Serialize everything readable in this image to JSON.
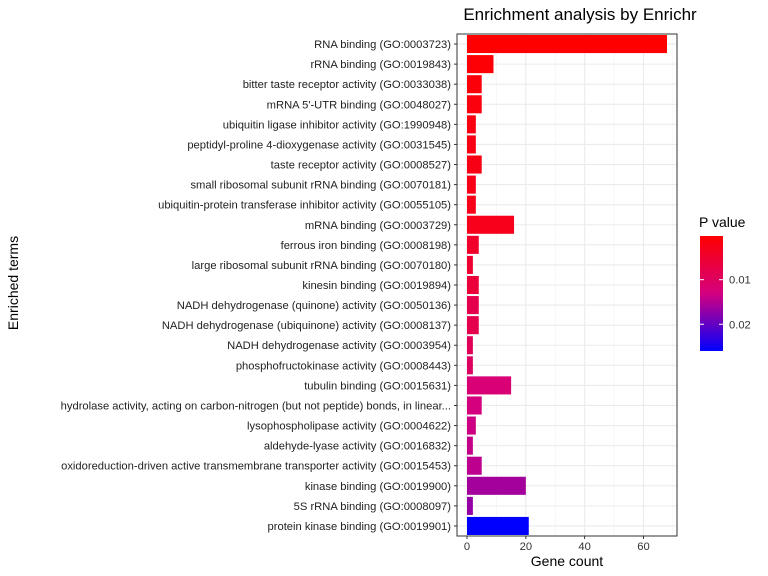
{
  "chart_data": {
    "type": "bar",
    "orientation": "horizontal",
    "title": "Enrichment analysis by Enrichr",
    "xlabel": "Gene count",
    "ylabel": "Enriched terms",
    "xlim": [
      0,
      70
    ],
    "xticks": [
      0,
      20,
      40,
      60
    ],
    "grid": true,
    "legend": {
      "title": "P value",
      "position": "right",
      "type": "colorbar",
      "range": [
        0.0002,
        0.026
      ],
      "ticks": [
        0.01,
        0.02
      ],
      "tick_labels": [
        "0.01",
        "0.02"
      ],
      "color_low_p": "#ff0000",
      "color_high_p": "#0000ff"
    },
    "bars": [
      {
        "term": "RNA binding (GO:0003723)",
        "count": 68,
        "pvalue": 0.0002
      },
      {
        "term": "rRNA binding (GO:0019843)",
        "count": 9,
        "pvalue": 0.0008
      },
      {
        "term": "bitter taste receptor activity (GO:0033038)",
        "count": 5,
        "pvalue": 0.0012
      },
      {
        "term": "mRNA 5'-UTR binding (GO:0048027)",
        "count": 5,
        "pvalue": 0.0015
      },
      {
        "term": "ubiquitin ligase inhibitor activity (GO:1990948)",
        "count": 3,
        "pvalue": 0.0018
      },
      {
        "term": "peptidyl-proline 4-dioxygenase activity (GO:0031545)",
        "count": 3,
        "pvalue": 0.002
      },
      {
        "term": "taste receptor activity (GO:0008527)",
        "count": 5,
        "pvalue": 0.0022
      },
      {
        "term": "small ribosomal subunit rRNA binding (GO:0070181)",
        "count": 3,
        "pvalue": 0.0024
      },
      {
        "term": "ubiquitin-protein transferase inhibitor activity (GO:0055105)",
        "count": 3,
        "pvalue": 0.0026
      },
      {
        "term": "mRNA binding (GO:0003729)",
        "count": 16,
        "pvalue": 0.003
      },
      {
        "term": "ferrous iron binding (GO:0008198)",
        "count": 4,
        "pvalue": 0.0045
      },
      {
        "term": "large ribosomal subunit rRNA binding (GO:0070180)",
        "count": 2,
        "pvalue": 0.005
      },
      {
        "term": "kinesin binding (GO:0019894)",
        "count": 4,
        "pvalue": 0.006
      },
      {
        "term": "NADH dehydrogenase (quinone) activity (GO:0050136)",
        "count": 4,
        "pvalue": 0.008
      },
      {
        "term": "NADH dehydrogenase (ubiquinone) activity (GO:0008137)",
        "count": 4,
        "pvalue": 0.008
      },
      {
        "term": "NADH dehydrogenase activity (GO:0003954)",
        "count": 2,
        "pvalue": 0.009
      },
      {
        "term": "phosphofructokinase activity (GO:0008443)",
        "count": 2,
        "pvalue": 0.01
      },
      {
        "term": "tubulin binding (GO:0015631)",
        "count": 15,
        "pvalue": 0.012
      },
      {
        "term": "hydrolase activity, acting on carbon-nitrogen (but not peptide) bonds, in linear...",
        "count": 5,
        "pvalue": 0.013
      },
      {
        "term": "lysophospholipase activity (GO:0004622)",
        "count": 3,
        "pvalue": 0.0135
      },
      {
        "term": "aldehyde-lyase activity (GO:0016832)",
        "count": 2,
        "pvalue": 0.014
      },
      {
        "term": "oxidoreduction-driven active transmembrane transporter activity (GO:0015453)",
        "count": 5,
        "pvalue": 0.0145
      },
      {
        "term": "kinase binding (GO:0019900)",
        "count": 20,
        "pvalue": 0.016
      },
      {
        "term": "5S rRNA binding (GO:0008097)",
        "count": 2,
        "pvalue": 0.017
      },
      {
        "term": "protein kinase binding (GO:0019901)",
        "count": 21,
        "pvalue": 0.026
      }
    ]
  }
}
